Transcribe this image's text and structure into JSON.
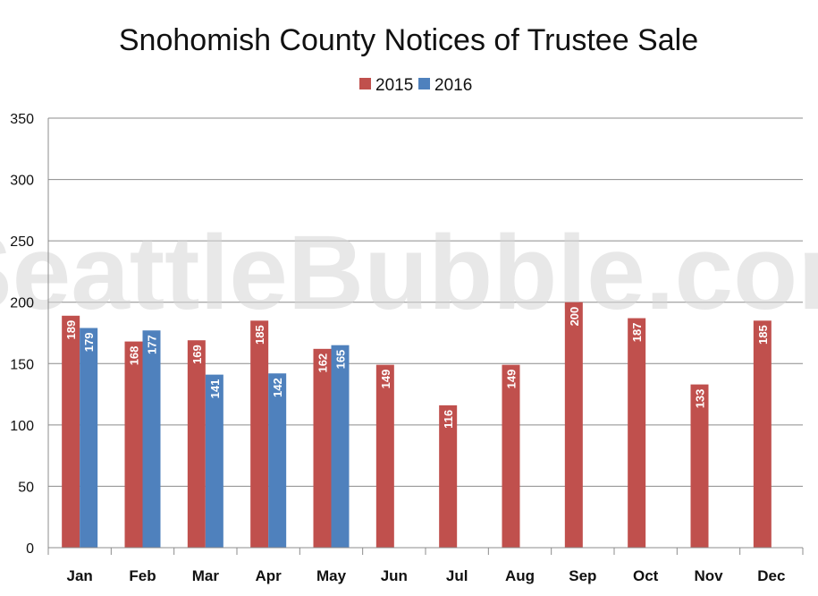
{
  "chart_data": {
    "type": "bar",
    "title": "Snohomish County Notices of Trustee Sale",
    "watermark": "SeattleBubble.com",
    "categories": [
      "Jan",
      "Feb",
      "Mar",
      "Apr",
      "May",
      "Jun",
      "Jul",
      "Aug",
      "Sep",
      "Oct",
      "Nov",
      "Dec"
    ],
    "series": [
      {
        "name": "2015",
        "color": "#c0504d",
        "values": [
          189,
          168,
          169,
          185,
          162,
          149,
          116,
          149,
          200,
          187,
          133,
          185
        ]
      },
      {
        "name": "2016",
        "color": "#4f81bd",
        "values": [
          179,
          177,
          141,
          142,
          165,
          null,
          null,
          null,
          null,
          null,
          null,
          null
        ]
      }
    ],
    "ylim": [
      0,
      350
    ],
    "yticks": [
      0,
      50,
      100,
      150,
      200,
      250,
      300,
      350
    ],
    "grid": true,
    "legend_position": "top-center"
  }
}
